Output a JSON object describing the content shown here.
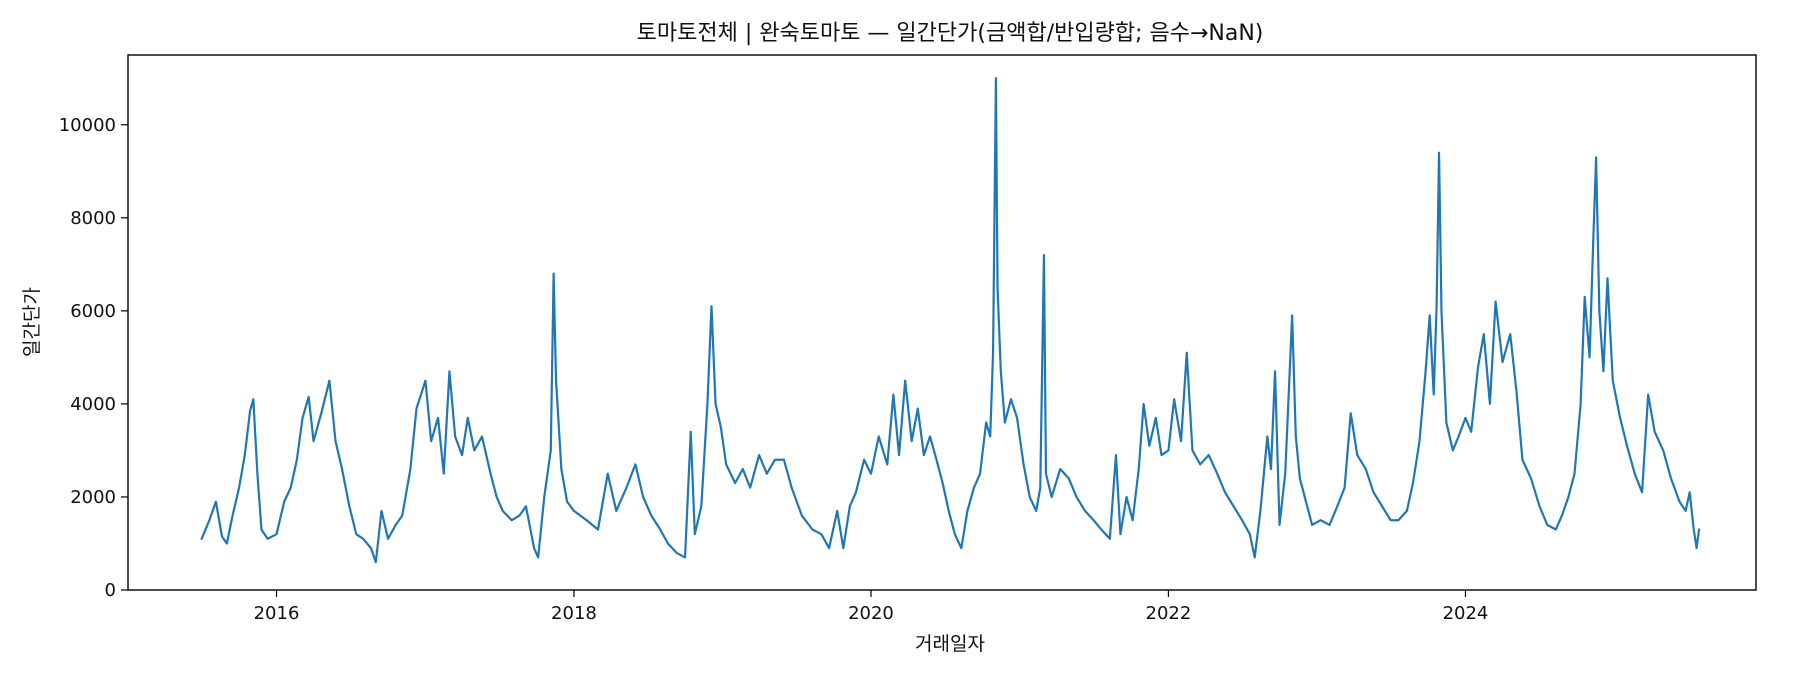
{
  "chart_data": {
    "type": "line",
    "title": "토마토전체 | 완숙토마토 — 일간단가(금액합/반입량합; 음수→NaN)",
    "xlabel": "거래일자",
    "ylabel": "일간단가",
    "xlim": [
      "2015-01-01",
      "2025-12-15"
    ],
    "ylim": [
      0,
      11500
    ],
    "x_ticks": [
      "2016-01-01",
      "2018-01-01",
      "2020-01-01",
      "2022-01-01",
      "2024-01-01"
    ],
    "x_tick_labels": [
      "2016",
      "2018",
      "2020",
      "2022",
      "2024"
    ],
    "y_ticks": [
      0,
      2000,
      4000,
      6000,
      8000,
      10000
    ],
    "y_tick_labels": [
      "0",
      "2000",
      "4000",
      "6000",
      "8000",
      "10000"
    ],
    "grid": false,
    "line_color": "#1f77b4",
    "series": [
      {
        "values": [
          [
            "2015-07-01",
            1100
          ],
          [
            "2015-07-20",
            1500
          ],
          [
            "2015-08-05",
            1900
          ],
          [
            "2015-08-20",
            1150
          ],
          [
            "2015-09-01",
            1000
          ],
          [
            "2015-09-15",
            1600
          ],
          [
            "2015-10-01",
            2200
          ],
          [
            "2015-10-15",
            2900
          ],
          [
            "2015-10-28",
            3850
          ],
          [
            "2015-11-05",
            4100
          ],
          [
            "2015-11-15",
            2500
          ],
          [
            "2015-11-25",
            1300
          ],
          [
            "2015-12-10",
            1100
          ],
          [
            "2016-01-01",
            1200
          ],
          [
            "2016-01-20",
            1900
          ],
          [
            "2016-02-05",
            2200
          ],
          [
            "2016-02-20",
            2800
          ],
          [
            "2016-03-05",
            3700
          ],
          [
            "2016-03-20",
            4150
          ],
          [
            "2016-04-01",
            3200
          ],
          [
            "2016-04-20",
            3800
          ],
          [
            "2016-05-10",
            4500
          ],
          [
            "2016-05-25",
            3200
          ],
          [
            "2016-06-10",
            2600
          ],
          [
            "2016-06-28",
            1800
          ],
          [
            "2016-07-15",
            1200
          ],
          [
            "2016-08-01",
            1100
          ],
          [
            "2016-08-20",
            900
          ],
          [
            "2016-09-01",
            600
          ],
          [
            "2016-09-15",
            1700
          ],
          [
            "2016-10-01",
            1100
          ],
          [
            "2016-10-20",
            1400
          ],
          [
            "2016-11-05",
            1600
          ],
          [
            "2016-11-25",
            2600
          ],
          [
            "2016-12-10",
            3900
          ],
          [
            "2017-01-01",
            4500
          ],
          [
            "2017-01-15",
            3200
          ],
          [
            "2017-02-01",
            3700
          ],
          [
            "2017-02-15",
            2500
          ],
          [
            "2017-03-01",
            4700
          ],
          [
            "2017-03-15",
            3300
          ],
          [
            "2017-04-01",
            2900
          ],
          [
            "2017-04-15",
            3700
          ],
          [
            "2017-05-01",
            3000
          ],
          [
            "2017-05-20",
            3300
          ],
          [
            "2017-06-10",
            2500
          ],
          [
            "2017-06-25",
            2000
          ],
          [
            "2017-07-10",
            1700
          ],
          [
            "2017-08-01",
            1500
          ],
          [
            "2017-08-20",
            1600
          ],
          [
            "2017-09-05",
            1800
          ],
          [
            "2017-09-25",
            900
          ],
          [
            "2017-10-05",
            700
          ],
          [
            "2017-10-20",
            2000
          ],
          [
            "2017-11-05",
            3000
          ],
          [
            "2017-11-12",
            6800
          ],
          [
            "2017-11-18",
            4500
          ],
          [
            "2017-12-01",
            2600
          ],
          [
            "2017-12-15",
            1900
          ],
          [
            "2018-01-01",
            1700
          ],
          [
            "2018-02-01",
            1500
          ],
          [
            "2018-03-01",
            1300
          ],
          [
            "2018-03-25",
            2500
          ],
          [
            "2018-04-15",
            1700
          ],
          [
            "2018-05-10",
            2200
          ],
          [
            "2018-06-01",
            2700
          ],
          [
            "2018-06-20",
            2000
          ],
          [
            "2018-07-10",
            1600
          ],
          [
            "2018-08-01",
            1300
          ],
          [
            "2018-08-20",
            1000
          ],
          [
            "2018-09-10",
            800
          ],
          [
            "2018-10-01",
            700
          ],
          [
            "2018-10-15",
            3400
          ],
          [
            "2018-10-25",
            1200
          ],
          [
            "2018-11-10",
            1800
          ],
          [
            "2018-11-25",
            4000
          ],
          [
            "2018-12-05",
            6100
          ],
          [
            "2018-12-15",
            4000
          ],
          [
            "2018-12-28",
            3500
          ],
          [
            "2019-01-10",
            2700
          ],
          [
            "2019-02-01",
            2300
          ],
          [
            "2019-02-20",
            2600
          ],
          [
            "2019-03-10",
            2200
          ],
          [
            "2019-04-01",
            2900
          ],
          [
            "2019-04-20",
            2500
          ],
          [
            "2019-05-10",
            2800
          ],
          [
            "2019-06-01",
            2800
          ],
          [
            "2019-06-20",
            2200
          ],
          [
            "2019-07-15",
            1600
          ],
          [
            "2019-08-10",
            1300
          ],
          [
            "2019-09-01",
            1200
          ],
          [
            "2019-09-20",
            900
          ],
          [
            "2019-10-10",
            1700
          ],
          [
            "2019-10-25",
            900
          ],
          [
            "2019-11-10",
            1800
          ],
          [
            "2019-11-25",
            2100
          ],
          [
            "2019-12-15",
            2800
          ],
          [
            "2020-01-01",
            2500
          ],
          [
            "2020-01-20",
            3300
          ],
          [
            "2020-02-10",
            2700
          ],
          [
            "2020-02-25",
            4200
          ],
          [
            "2020-03-10",
            2900
          ],
          [
            "2020-03-25",
            4500
          ],
          [
            "2020-04-10",
            3200
          ],
          [
            "2020-04-25",
            3900
          ],
          [
            "2020-05-10",
            2900
          ],
          [
            "2020-05-25",
            3300
          ],
          [
            "2020-06-10",
            2800
          ],
          [
            "2020-06-25",
            2300
          ],
          [
            "2020-07-10",
            1700
          ],
          [
            "2020-07-25",
            1200
          ],
          [
            "2020-08-10",
            900
          ],
          [
            "2020-08-25",
            1700
          ],
          [
            "2020-09-10",
            2200
          ],
          [
            "2020-09-25",
            2500
          ],
          [
            "2020-10-10",
            3600
          ],
          [
            "2020-10-20",
            3300
          ],
          [
            "2020-10-27",
            5100
          ],
          [
            "2020-11-03",
            11000
          ],
          [
            "2020-11-07",
            6500
          ],
          [
            "2020-11-15",
            4700
          ],
          [
            "2020-11-25",
            3600
          ],
          [
            "2020-12-10",
            4100
          ],
          [
            "2020-12-25",
            3700
          ],
          [
            "2021-01-10",
            2700
          ],
          [
            "2021-01-25",
            2000
          ],
          [
            "2021-02-10",
            1700
          ],
          [
            "2021-02-20",
            2200
          ],
          [
            "2021-03-01",
            7200
          ],
          [
            "2021-03-06",
            2500
          ],
          [
            "2021-03-20",
            2000
          ],
          [
            "2021-04-10",
            2600
          ],
          [
            "2021-05-01",
            2400
          ],
          [
            "2021-05-20",
            2000
          ],
          [
            "2021-06-10",
            1700
          ],
          [
            "2021-07-01",
            1500
          ],
          [
            "2021-07-20",
            1300
          ],
          [
            "2021-08-10",
            1100
          ],
          [
            "2021-08-25",
            2900
          ],
          [
            "2021-09-05",
            1200
          ],
          [
            "2021-09-20",
            2000
          ],
          [
            "2021-10-05",
            1500
          ],
          [
            "2021-10-20",
            2600
          ],
          [
            "2021-11-01",
            4000
          ],
          [
            "2021-11-15",
            3100
          ],
          [
            "2021-12-01",
            3700
          ],
          [
            "2021-12-15",
            2900
          ],
          [
            "2022-01-01",
            3000
          ],
          [
            "2022-01-15",
            4100
          ],
          [
            "2022-02-01",
            3200
          ],
          [
            "2022-02-15",
            5100
          ],
          [
            "2022-03-01",
            3000
          ],
          [
            "2022-03-20",
            2700
          ],
          [
            "2022-04-10",
            2900
          ],
          [
            "2022-05-01",
            2500
          ],
          [
            "2022-05-20",
            2100
          ],
          [
            "2022-06-10",
            1800
          ],
          [
            "2022-07-01",
            1500
          ],
          [
            "2022-07-20",
            1200
          ],
          [
            "2022-08-01",
            700
          ],
          [
            "2022-08-15",
            1700
          ],
          [
            "2022-09-01",
            3300
          ],
          [
            "2022-09-10",
            2600
          ],
          [
            "2022-09-20",
            4700
          ],
          [
            "2022-10-01",
            1400
          ],
          [
            "2022-10-15",
            2500
          ],
          [
            "2022-11-01",
            5900
          ],
          [
            "2022-11-10",
            3300
          ],
          [
            "2022-11-20",
            2400
          ],
          [
            "2022-12-05",
            1900
          ],
          [
            "2022-12-20",
            1400
          ],
          [
            "2023-01-10",
            1500
          ],
          [
            "2023-02-01",
            1400
          ],
          [
            "2023-02-20",
            1800
          ],
          [
            "2023-03-10",
            2200
          ],
          [
            "2023-03-25",
            3800
          ],
          [
            "2023-04-10",
            2900
          ],
          [
            "2023-05-01",
            2600
          ],
          [
            "2023-05-20",
            2100
          ],
          [
            "2023-06-10",
            1800
          ],
          [
            "2023-07-01",
            1500
          ],
          [
            "2023-07-20",
            1500
          ],
          [
            "2023-08-10",
            1700
          ],
          [
            "2023-08-25",
            2300
          ],
          [
            "2023-09-10",
            3200
          ],
          [
            "2023-09-25",
            4700
          ],
          [
            "2023-10-05",
            5900
          ],
          [
            "2023-10-15",
            4200
          ],
          [
            "2023-10-22",
            6100
          ],
          [
            "2023-10-28",
            9400
          ],
          [
            "2023-11-03",
            6000
          ],
          [
            "2023-11-15",
            3600
          ],
          [
            "2023-12-01",
            3000
          ],
          [
            "2023-12-15",
            3300
          ],
          [
            "2024-01-01",
            3700
          ],
          [
            "2024-01-15",
            3400
          ],
          [
            "2024-02-01",
            4800
          ],
          [
            "2024-02-15",
            5500
          ],
          [
            "2024-03-01",
            4000
          ],
          [
            "2024-03-15",
            6200
          ],
          [
            "2024-04-01",
            4900
          ],
          [
            "2024-04-20",
            5500
          ],
          [
            "2024-05-05",
            4300
          ],
          [
            "2024-05-20",
            2800
          ],
          [
            "2024-06-10",
            2400
          ],
          [
            "2024-07-01",
            1800
          ],
          [
            "2024-07-20",
            1400
          ],
          [
            "2024-08-10",
            1300
          ],
          [
            "2024-08-25",
            1600
          ],
          [
            "2024-09-10",
            2000
          ],
          [
            "2024-09-25",
            2500
          ],
          [
            "2024-10-10",
            4000
          ],
          [
            "2024-10-20",
            6300
          ],
          [
            "2024-11-01",
            5000
          ],
          [
            "2024-11-10",
            7500
          ],
          [
            "2024-11-17",
            9300
          ],
          [
            "2024-11-25",
            6000
          ],
          [
            "2024-12-05",
            4700
          ],
          [
            "2024-12-15",
            6700
          ],
          [
            "2024-12-28",
            4500
          ],
          [
            "2025-01-15",
            3700
          ],
          [
            "2025-02-01",
            3100
          ],
          [
            "2025-02-20",
            2500
          ],
          [
            "2025-03-10",
            2100
          ],
          [
            "2025-03-25",
            4200
          ],
          [
            "2025-04-10",
            3400
          ],
          [
            "2025-05-01",
            3000
          ],
          [
            "2025-05-20",
            2400
          ],
          [
            "2025-06-10",
            1900
          ],
          [
            "2025-06-25",
            1700
          ],
          [
            "2025-07-05",
            2100
          ],
          [
            "2025-07-15",
            1300
          ],
          [
            "2025-07-22",
            900
          ],
          [
            "2025-07-28",
            1300
          ]
        ]
      }
    ]
  }
}
